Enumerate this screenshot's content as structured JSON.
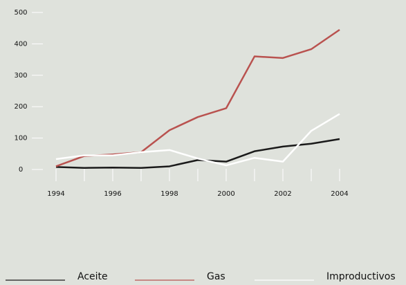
{
  "chart_data": {
    "type": "line",
    "x": [
      1994,
      1995,
      1996,
      1997,
      1998,
      1999,
      2000,
      2001,
      2002,
      2003,
      2004
    ],
    "series": [
      {
        "name": "Aceite",
        "color": "#1a1a1a",
        "values": [
          8,
          5,
          6,
          5,
          10,
          30,
          25,
          58,
          73,
          82,
          97
        ]
      },
      {
        "name": "Gas",
        "color": "#b9524f",
        "values": [
          10,
          43,
          48,
          55,
          125,
          167,
          195,
          360,
          355,
          383,
          445
        ]
      },
      {
        "name": "Improductivos",
        "color": "#ffffff",
        "values": [
          33,
          45,
          45,
          55,
          62,
          35,
          13,
          37,
          25,
          123,
          177
        ]
      }
    ],
    "xlim": [
      1994,
      2004
    ],
    "xticks": [
      1994,
      1996,
      1998,
      2000,
      2002,
      2004
    ],
    "ylim": [
      0,
      500
    ],
    "yticks": [
      0,
      100,
      200,
      300,
      400,
      500
    ],
    "legend": "bottom"
  }
}
